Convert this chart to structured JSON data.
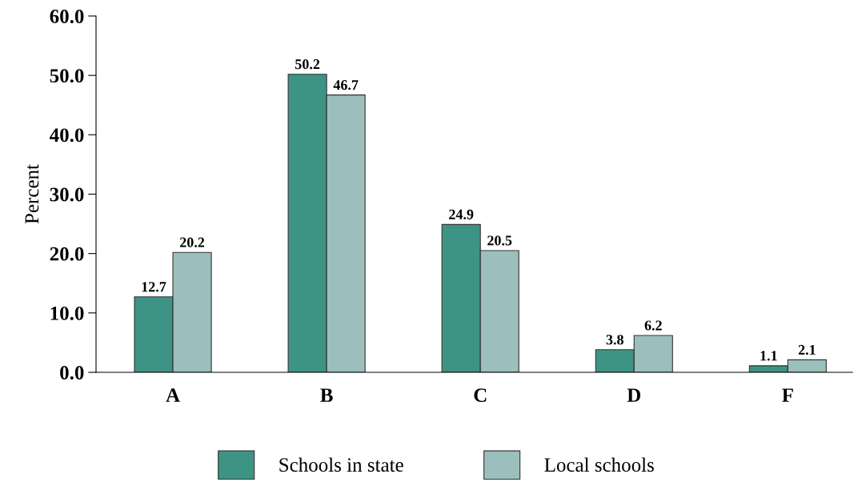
{
  "chart_data": {
    "type": "bar",
    "ylabel": "Percent",
    "categories": [
      "A",
      "B",
      "C",
      "D",
      "F"
    ],
    "series": [
      {
        "name": "Schools in state",
        "color": "#3d9484",
        "values": [
          12.7,
          50.2,
          24.9,
          3.8,
          1.1
        ]
      },
      {
        "name": "Local schools",
        "color": "#9bbfbc",
        "values": [
          20.2,
          46.7,
          20.5,
          6.2,
          2.1
        ]
      }
    ],
    "ylim": [
      0,
      60
    ],
    "yticks": [
      {
        "value": 0,
        "label": "0.0"
      },
      {
        "value": 10,
        "label": "10.0"
      },
      {
        "value": 20,
        "label": "20.0"
      },
      {
        "value": 30,
        "label": "30.0"
      },
      {
        "value": 40,
        "label": "40.0"
      },
      {
        "value": 50,
        "label": "50.0"
      },
      {
        "value": 60,
        "label": "60.0"
      }
    ],
    "data_labels": true,
    "legend": "bottom",
    "grid": false
  }
}
